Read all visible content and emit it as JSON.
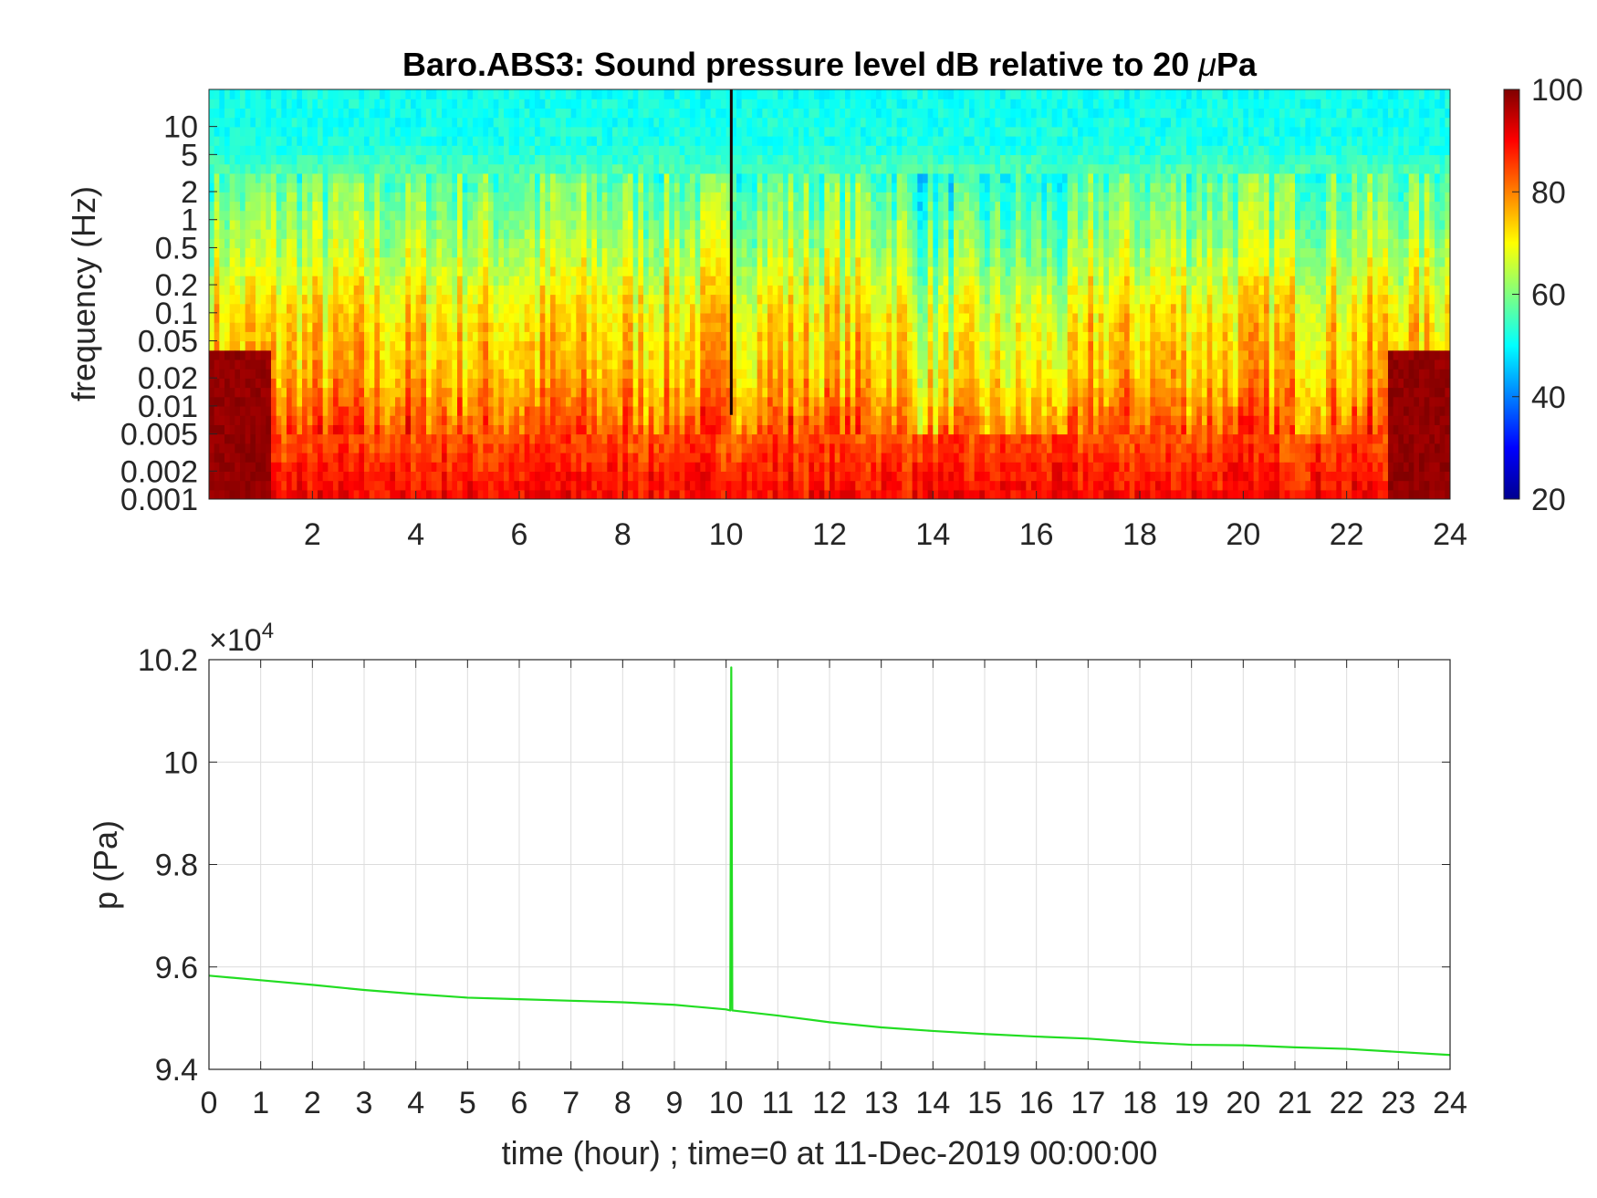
{
  "chart_data": [
    {
      "type": "heatmap",
      "title": "Baro.ABS3: Sound pressure level dB relative to 20 μPa",
      "title_parts": [
        "Baro.ABS3: Sound pressure level dB relative to 20 ",
        "μ",
        "Pa"
      ],
      "xlabel": "",
      "ylabel": "frequency (Hz)",
      "x_ticks": [
        "2",
        "4",
        "6",
        "8",
        "10",
        "12",
        "14",
        "16",
        "18",
        "20",
        "22",
        "24"
      ],
      "x_tick_values": [
        2,
        4,
        6,
        8,
        10,
        12,
        14,
        16,
        18,
        20,
        22,
        24
      ],
      "xlim": [
        0,
        24
      ],
      "y_scale": "log",
      "y_ticks": [
        "10",
        "5",
        "2",
        "1",
        "0.5",
        "0.2",
        "0.1",
        "0.05",
        "0.02",
        "0.01",
        "0.005",
        "0.002",
        "0.001"
      ],
      "y_tick_values": [
        10,
        5,
        2,
        1,
        0.5,
        0.2,
        0.1,
        0.05,
        0.02,
        0.01,
        0.005,
        0.002,
        0.001
      ],
      "ylim": [
        0.001,
        25
      ],
      "colormap": "jet",
      "colorbar": {
        "ticks": [
          "100",
          "80",
          "60",
          "40",
          "20"
        ],
        "tick_values": [
          100,
          80,
          60,
          40,
          20
        ],
        "range": [
          20,
          100
        ]
      },
      "approx_levels_db": {
        "above_5Hz": 52,
        "0.5_to_2Hz": 63,
        "0.05_to_0.2Hz": 72,
        "0.005_to_0.02Hz": 80,
        "0.001_to_0.003Hz": 90
      },
      "transient_hour": 10.1
    },
    {
      "type": "line",
      "xlabel": "time (hour) ; time=0 at 11-Dec-2019 00:00:00",
      "ylabel": "p (Pa)",
      "y_exponent_base": "×10",
      "y_exponent_power": "4",
      "xlim": [
        0,
        24
      ],
      "ylim": [
        9.4,
        10.2
      ],
      "x_ticks": [
        "0",
        "1",
        "2",
        "3",
        "4",
        "5",
        "6",
        "7",
        "8",
        "9",
        "10",
        "11",
        "12",
        "13",
        "14",
        "15",
        "16",
        "17",
        "18",
        "19",
        "20",
        "21",
        "22",
        "23",
        "24"
      ],
      "y_ticks": [
        "10.2",
        "10",
        "9.8",
        "9.6",
        "9.4"
      ],
      "y_tick_values": [
        10.2,
        10.0,
        9.8,
        9.6,
        9.4
      ],
      "grid": true,
      "line_color": "#22dd22",
      "series": [
        {
          "x": [
            0,
            1,
            2,
            3,
            4,
            5,
            6,
            7,
            8,
            9,
            10,
            10.08,
            10.1,
            10.12,
            11,
            12,
            13,
            14,
            15,
            16,
            17,
            18,
            19,
            20,
            21,
            22,
            23,
            24
          ],
          "y": [
            9.583,
            9.574,
            9.565,
            9.555,
            9.547,
            9.54,
            9.537,
            9.534,
            9.531,
            9.526,
            9.517,
            9.515,
            10.185,
            9.515,
            9.505,
            9.492,
            9.482,
            9.475,
            9.469,
            9.464,
            9.46,
            9.453,
            9.448,
            9.447,
            9.443,
            9.44,
            9.434,
            9.428
          ]
        }
      ]
    }
  ]
}
